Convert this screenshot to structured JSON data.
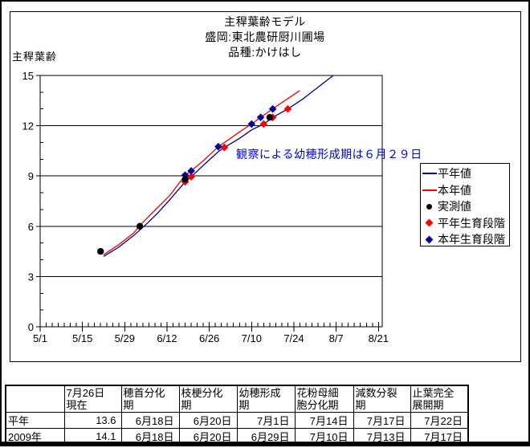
{
  "chart": {
    "title_lines": [
      "主稈葉齢モデル",
      "盛岡:東北農研厨川圃場",
      "品種:かけはし"
    ],
    "y_axis_label": "主稈葉齢",
    "annotation": "観察による幼穂形成期は６月２９日",
    "annotation_color": "#0000dd",
    "legend": [
      {
        "label": "平年値",
        "marker": "line",
        "color": "#000080"
      },
      {
        "label": "本年値",
        "marker": "line",
        "color": "#ff0000"
      },
      {
        "label": "実測値",
        "marker": "circle",
        "color": "#000000"
      },
      {
        "label": "平年生育段階",
        "marker": "diamond",
        "color": "#ff0000"
      },
      {
        "label": "本年生育段階",
        "marker": "diamond",
        "color": "#000099"
      }
    ]
  },
  "chart_data": {
    "type": "line",
    "title": "主稈葉齢モデル 盛岡:東北農研厨川圃場 品種:かけはし",
    "xlabel": "",
    "ylabel": "主稈葉齢",
    "ylim": [
      0,
      15
    ],
    "y_major_tick_step": 3,
    "y_minor_tick_step": 1,
    "y_gridlines": [
      3,
      6,
      9,
      12
    ],
    "x_tick_labels": [
      "5/1",
      "5/15",
      "5/29",
      "6/12",
      "6/26",
      "7/10",
      "7/24",
      "8/7",
      "8/21"
    ],
    "x_tick_step_days": 14,
    "x_minor_tick_step_days": 2,
    "legend_position": "right",
    "series": [
      {
        "id": "line-heinen",
        "name": "平年値",
        "type": "line",
        "color": "#000080",
        "points": [
          [
            "5/22",
            4.2
          ],
          [
            "5/27",
            4.75
          ],
          [
            "6/1",
            5.45
          ],
          [
            "6/5",
            6.1
          ],
          [
            "6/9",
            6.8
          ],
          [
            "6/13",
            7.6
          ],
          [
            "6/18",
            8.65
          ],
          [
            "6/20",
            8.95
          ],
          [
            "6/25",
            9.8
          ],
          [
            "6/29",
            10.45
          ],
          [
            "7/1",
            10.7
          ],
          [
            "7/6",
            11.25
          ],
          [
            "7/10",
            11.75
          ],
          [
            "7/14",
            12.1
          ],
          [
            "7/17",
            12.5
          ],
          [
            "7/22",
            13.0
          ],
          [
            "7/27",
            13.6
          ],
          [
            "8/1",
            14.3
          ],
          [
            "8/6",
            15.0
          ]
        ]
      },
      {
        "id": "line-honnen",
        "name": "本年値",
        "type": "line",
        "color": "#ff0000",
        "points": [
          [
            "5/22",
            4.3
          ],
          [
            "5/27",
            4.9
          ],
          [
            "6/1",
            5.6
          ],
          [
            "6/3",
            6.05
          ],
          [
            "6/8",
            6.95
          ],
          [
            "6/13",
            7.85
          ],
          [
            "6/18",
            9.05
          ],
          [
            "6/20",
            9.3
          ],
          [
            "6/24",
            9.9
          ],
          [
            "6/29",
            10.75
          ],
          [
            "7/3",
            11.25
          ],
          [
            "7/7",
            11.75
          ],
          [
            "7/10",
            12.1
          ],
          [
            "7/13",
            12.5
          ],
          [
            "7/17",
            13.0
          ],
          [
            "7/21",
            13.5
          ],
          [
            "7/26",
            14.1
          ]
        ]
      },
      {
        "id": "diamonds-heinen-stage",
        "name": "平年生育段階",
        "type": "scatter",
        "marker": "diamond",
        "color": "#ff0000",
        "points": [
          [
            "6/18",
            8.65
          ],
          [
            "6/20",
            8.95
          ],
          [
            "7/1",
            10.7
          ],
          [
            "7/14",
            12.1
          ],
          [
            "7/17",
            12.5
          ],
          [
            "7/22",
            13.0
          ]
        ]
      },
      {
        "id": "diamonds-honnen-stage",
        "name": "本年生育段階",
        "type": "scatter",
        "marker": "diamond",
        "color": "#000099",
        "points": [
          [
            "6/18",
            9.05
          ],
          [
            "6/20",
            9.3
          ],
          [
            "6/29",
            10.75
          ],
          [
            "7/10",
            12.1
          ],
          [
            "7/13",
            12.5
          ],
          [
            "7/17",
            13.0
          ]
        ]
      },
      {
        "id": "dots-jissoku",
        "name": "実測値",
        "type": "scatter",
        "marker": "circle",
        "color": "#000000",
        "points": [
          [
            "5/21",
            4.5
          ],
          [
            "6/3",
            6.0
          ],
          [
            "6/18",
            8.8
          ],
          [
            "7/16",
            12.5
          ]
        ]
      }
    ]
  },
  "table": {
    "header": [
      "",
      "7月26日\n現在",
      "穂首分化\n期",
      "枝梗分化\n期",
      "幼穂形成\n期",
      "花粉母細\n胞分化期",
      "減数分裂\n期",
      "止葉完全\n展開期"
    ],
    "rows": [
      {
        "label": "平年",
        "cells": [
          "13.6",
          "6月18日",
          "6月20日",
          "7月1日",
          "7月14日",
          "7月17日",
          "7月22日"
        ]
      },
      {
        "label": "2009年",
        "cells": [
          "14.1",
          "6月18日",
          "6月20日",
          "6月29日",
          "7月10日",
          "7月13日",
          "7月17日"
        ]
      }
    ]
  }
}
